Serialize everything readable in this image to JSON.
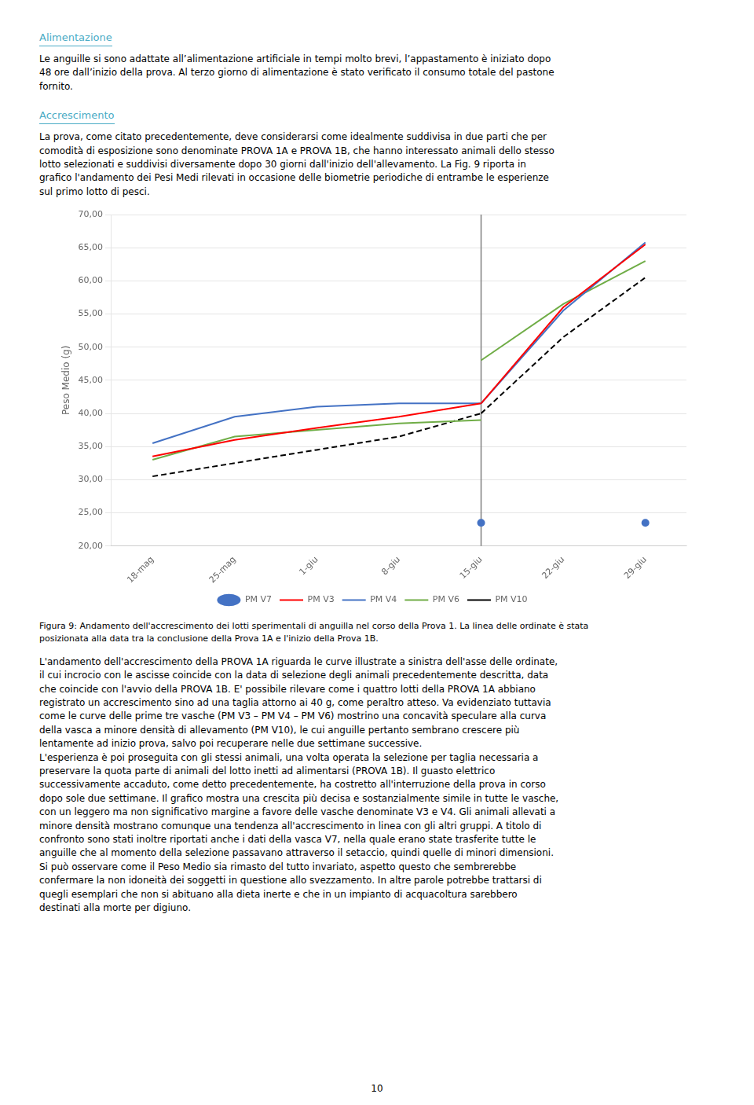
{
  "chart_data": {
    "type": "line",
    "annotations": [
      "Alimentazione",
      "Le anguille si sono adattate all’alimentazione artificiale in tempi molto brevi,  l’appastamento è iniziato dopo\n48 ore dall’inizio della prova. Al terzo giorno di alimentazione è stato verificato il consumo totale del pastone\nfornito.",
      "Accrescimento",
      "La prova, come citato precedentemente, deve considerarsi come idealmente suddivisa in due parti che per\ncomodità di esposizione sono denominate PROVA 1A e PROVA 1B, che hanno interessato animali dello stesso\nlotto selezionati e suddivisi diversamente dopo 30 giorni dall'inizio dell'allevamento. La Fig. 9 riporta in\ngrafico l'andamento dei Pesi Medi rilevati in occasione delle biometrie periodiche di entrambe le esperienze\nsul primo lotto di pesci.",
      "Figura 9: Andamento dell'accrescimento dei lotti sperimentali di anguilla nel corso della Prova 1. La linea delle ordinate è stata\nposizionata alla data tra la conclusione della Prova 1A e l'inizio della Prova 1B.",
      "L'andamento dell'accrescimento della PROVA 1A riguarda le curve illustrate a sinistra dell'asse delle ordinate,\nil cui incrocio con le ascisse coincide con la data di selezione degli animali precedentemente descritta, data\nche coincide con l'avvio della PROVA 1B. E' possibile rilevare come i quattro lotti della PROVA 1A abbiano\nregistrato un accrescimento sino ad una taglia attorno ai 40 g, come peraltro atteso. Va evidenziato tuttavia\ncome le curve delle prime tre vasche (PM V3 – PM V4 – PM V6) mostrino una concavità speculare alla curva\ndella vasca a minore densità di allevamento (PM V10), le cui anguille pertanto sembrano crescere più\nlentamente ad inizio prova, salvo poi recuperare nelle due settimane successive.\nL'esperienza è poi proseguita con gli stessi animali, una volta operata la selezione per taglia necessaria a\npreservare la quota parte di animali del lotto inetti ad alimentarsi (PROVA 1B). Il guasto elettrico\nsuccessivamente accaduto, come detto precedentemente, ha costretto all'interruzione della prova in corso\ndopo sole due settimane. Il grafico mostra una crescita più decisa e sostanzialmente simile in tutte le vasche,\ncon un leggero ma non significativo margine a favore delle vasche denominate V3 e V4. Gli animali allevati a\nminore densità mostrano comunque una tendenza all'accrescimento in linea con gli altri gruppi. A titolo di\nconfronto sono stati inoltre riportati anche i dati della vasca V7, nella quale erano state trasferite tutte le\nanguille che al momento della selezione passavano attraverso il setaccio, quindi quelle di minori dimensioni.\nSi può osservare come il Peso Medio sia rimasto del tutto invariato, aspetto questo che sembrerebbe\nconfermare la non idoneità dei soggetti in questione allo svezzamento. In altre parole potrebbe trattarsi di\nquegli esemplari che non si abituano alla dieta inerte e che in un impianto di acquacoltura sarebbero\ndestinati alla morte per digiuno.",
      "10"
    ],
    "ylabel": "Peso Medio (g)",
    "categories": [
      "18-mag",
      "25-mag",
      "1-giu",
      "8-giu",
      "15-giu",
      "22-giu",
      "29-giu"
    ],
    "series": [
      {
        "name": "PM V3",
        "color": "#FF0000",
        "line_style": "solid",
        "values": [
          33.5,
          36.0,
          37.8,
          39.5,
          41.5,
          null,
          null
        ]
      },
      {
        "name": "PM V4",
        "color": "#4472C4",
        "line_style": "solid",
        "values": [
          35.5,
          39.5,
          41.0,
          41.5,
          41.5,
          null,
          null
        ]
      },
      {
        "name": "PM V6",
        "color": "#70AD47",
        "line_style": "solid",
        "values": [
          33.0,
          36.5,
          37.5,
          38.5,
          39.0,
          null,
          null
        ]
      },
      {
        "name": "PM V10",
        "color": "#000000",
        "line_style": "dashed",
        "values": [
          30.5,
          32.5,
          34.5,
          36.5,
          40.0,
          null,
          null
        ]
      },
      {
        "name": "PM V3",
        "color": "#FF0000",
        "line_style": "solid",
        "values": [
          null,
          null,
          null,
          null,
          41.5,
          56.0,
          65.5
        ]
      },
      {
        "name": "PM V4",
        "color": "#4472C4",
        "line_style": "solid",
        "values": [
          null,
          null,
          null,
          null,
          41.5,
          55.5,
          65.8
        ]
      },
      {
        "name": "PM V6",
        "color": "#70AD47",
        "line_style": "solid",
        "values": [
          null,
          null,
          null,
          null,
          48.0,
          56.5,
          63.0
        ]
      },
      {
        "name": "PM V10",
        "color": "#000000",
        "line_style": "dashed",
        "values": [
          null,
          null,
          null,
          null,
          40.0,
          51.5,
          60.5
        ]
      },
      {
        "name": "PM V7",
        "type": "scatter",
        "marker": "circle",
        "color": "#4472C4",
        "values": [
          null,
          null,
          null,
          null,
          23.5,
          null,
          23.5
        ]
      }
    ],
    "vertical_line": {
      "x": "15-giu",
      "color": "#808080"
    },
    "ylim": [
      20,
      70
    ],
    "yticks": [
      {
        "value": 20,
        "label": "20,00"
      },
      {
        "value": 25,
        "label": "25,00"
      },
      {
        "value": 30,
        "label": "30,00"
      },
      {
        "value": 35,
        "label": "35,00"
      },
      {
        "value": 40,
        "label": "40,00"
      },
      {
        "value": 45,
        "label": "45,00"
      },
      {
        "value": 50,
        "label": "50,00"
      },
      {
        "value": 55,
        "label": "55,00"
      },
      {
        "value": 60,
        "label": "60,00"
      },
      {
        "value": 65,
        "label": "65,00"
      },
      {
        "value": 70,
        "label": "70,00"
      }
    ],
    "grid": true,
    "legend": "bottom"
  }
}
